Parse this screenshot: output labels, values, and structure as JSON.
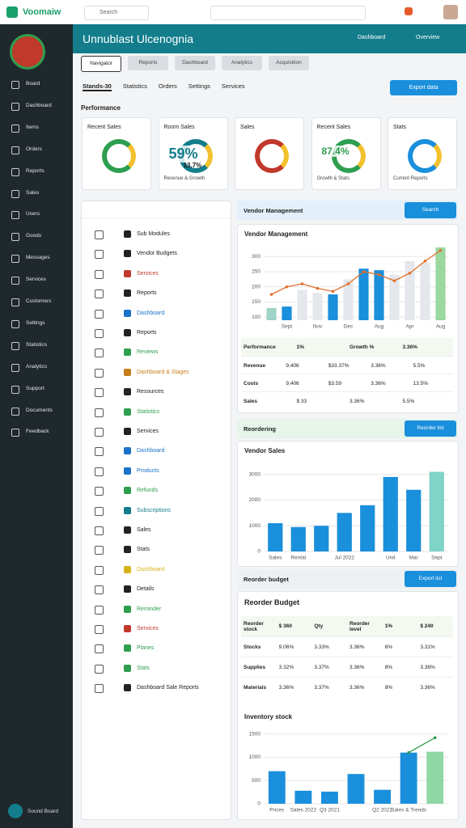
{
  "topbar": {
    "brand": "Voomaiw",
    "search": "Search"
  },
  "sidebar": {
    "items": [
      "Board",
      "Dashboard",
      "Items",
      "Orders",
      "Reports",
      "Sales",
      "Users",
      "Goods",
      "Messages",
      "Services",
      "Customers",
      "Settings",
      "Statistics",
      "Analytics",
      "Support",
      "Documents",
      "Feedback"
    ],
    "footer": "Sound Board"
  },
  "header": {
    "title": "Unnublast Ulcenognia",
    "dropdown": "Dashboard",
    "overview": "Overview"
  },
  "tabs": [
    "Navigator",
    "Reports",
    "Dashboard",
    "Analytics",
    "Acquisition"
  ],
  "subtabs": [
    "Stands-30",
    "Statistics",
    "Orders",
    "Settings",
    "Services"
  ],
  "export_button": "Export data",
  "performance": {
    "title": "Performance",
    "cards": [
      {
        "title": "Recent Sales"
      },
      {
        "title": "Room Sales",
        "value": "59%",
        "sub": "13.7%",
        "footer": "Revenue & Growth"
      },
      {
        "title": "Sales"
      },
      {
        "title": "Recent Sales",
        "value": "87.4%",
        "footer": "Growth & Stats"
      },
      {
        "title": "Stats",
        "footer": "Current Reports"
      }
    ]
  },
  "list": {
    "items": [
      {
        "label": "Sub Modules",
        "color": "#222222"
      },
      {
        "label": "Vendor Budgets",
        "color": "#222222"
      },
      {
        "label": "Services",
        "color": "#c0392b"
      },
      {
        "label": "Reports",
        "color": "#222222"
      },
      {
        "label": "Dashboard",
        "color": "#1a73c9"
      },
      {
        "label": "Reports",
        "color": "#222222"
      },
      {
        "label": "Reviews",
        "color": "#2e9e4f"
      },
      {
        "label": "Dashboard & Stages",
        "color": "#c77d1a"
      },
      {
        "label": "Resources",
        "color": "#222222"
      },
      {
        "label": "Statistics",
        "color": "#2e9e4f"
      },
      {
        "label": "Services",
        "color": "#222222"
      },
      {
        "label": "Dashboard",
        "color": "#1a73c9"
      },
      {
        "label": "Products",
        "color": "#1a73c9"
      },
      {
        "label": "Refunds",
        "color": "#2e9e4f"
      },
      {
        "label": "Subscriptions",
        "color": "#137d8c"
      },
      {
        "label": "Sales",
        "color": "#222222"
      },
      {
        "label": "Stats",
        "color": "#222222"
      },
      {
        "label": "Dashboard",
        "color": "#d6b317"
      },
      {
        "label": "Details",
        "color": "#222222"
      },
      {
        "label": "Reminder",
        "color": "#2e9e4f"
      },
      {
        "label": "Services",
        "color": "#c0392b"
      },
      {
        "label": "Planes",
        "color": "#2e9e4f"
      },
      {
        "label": "Stats",
        "color": "#2e9e4f"
      },
      {
        "label": "Dashboard Sale Reports",
        "color": "#222222"
      }
    ]
  },
  "panels": [
    {
      "title": "Vendor Management",
      "button": "Search"
    },
    {
      "title": "Reordering",
      "button": "Reorder list"
    },
    {
      "title": "Reorder budget",
      "button": "Export list"
    }
  ],
  "vendor_table": {
    "header": [
      "Performance",
      "1%",
      "Growth %",
      "3.36%"
    ],
    "rows": [
      [
        "Revenue",
        "9,406",
        "$33.37%",
        "3.36%",
        "5.5%"
      ],
      [
        "Costs",
        "9,406",
        "$3.59",
        "3.36%",
        "13.5%"
      ],
      [
        "Sales",
        "$ 33",
        "3.36%",
        "5.5%"
      ]
    ]
  },
  "budget": {
    "title": "Reorder Budget",
    "header": [
      "Reorder stock",
      "$ 360",
      "Qty",
      "Reorder level",
      "1%",
      "$ 240"
    ],
    "rows": [
      [
        "Stocks",
        "9.06%",
        "3.33%",
        "3.36%",
        "6%",
        "3.31%"
      ],
      [
        "Supplies",
        "3.32%",
        "3.37%",
        "3.36%",
        "8%",
        "3.36%"
      ],
      [
        "Materials",
        "3.36%",
        "3.37%",
        "3.36%",
        "8%",
        "3.36%"
      ]
    ]
  },
  "chart_data": [
    {
      "type": "bar",
      "title": "Vendor Management",
      "categories": [
        null,
        "Sept",
        null,
        "Nov",
        null,
        "Dec",
        null,
        "Aug",
        null,
        "Apr",
        null,
        "Aug"
      ],
      "values": [
        130,
        135,
        190,
        180,
        175,
        225,
        260,
        255,
        240,
        285,
        280,
        330
      ],
      "colors": [
        "#9fd3c7",
        "#1a8fdc",
        "#e4e7ec",
        "#e4e7ec",
        "#1a8fdc",
        "#e4e7ec",
        "#1a8fdc",
        "#1a8fdc",
        "#e4e7ec",
        "#e4e7ec",
        "#e4e7ec",
        "#9bd89f"
      ],
      "line": [
        175,
        200,
        210,
        195,
        185,
        210,
        250,
        240,
        220,
        245,
        285,
        320
      ],
      "line_color": "#e0702b",
      "ylim": [
        90,
        330
      ],
      "yticks": [
        100,
        150,
        200,
        250,
        300
      ],
      "grid": true
    },
    {
      "type": "bar",
      "title": "Vendor Sales",
      "categories": [
        "Sales",
        "Rental",
        null,
        "Jul 2022",
        null,
        "Unit",
        "Mar",
        "Sept"
      ],
      "values": [
        1100,
        950,
        1000,
        1500,
        1800,
        2900,
        2400,
        3100
      ],
      "colors": [
        "#1a8fdc",
        "#1a8fdc",
        "#1a8fdc",
        "#1a8fdc",
        "#1a8fdc",
        "#1a8fdc",
        "#1a8fdc",
        "#7fd3c7"
      ],
      "ylim": [
        0,
        3400
      ],
      "yticks": [
        0,
        1000,
        2000,
        3000
      ],
      "grid": true
    },
    {
      "type": "bar",
      "title": "Inventory stock",
      "categories": [
        "Prices",
        "Sales 2022",
        "Q3 2021",
        null,
        "Q2 2022",
        "Sales & Trends",
        null
      ],
      "values": [
        700,
        280,
        260,
        640,
        300,
        1100,
        1120
      ],
      "colors": [
        "#1a8fdc",
        "#1a8fdc",
        "#1a8fdc",
        "#1a8fdc",
        "#1a8fdc",
        "#1a8fdc",
        "#8fd8a4"
      ],
      "line": [
        null,
        null,
        null,
        null,
        null,
        1100,
        1420
      ],
      "line_color": "#2e9e4f",
      "ylim": [
        0,
        1600
      ],
      "yticks": [
        0,
        500,
        1000,
        1500
      ],
      "grid": true
    }
  ]
}
